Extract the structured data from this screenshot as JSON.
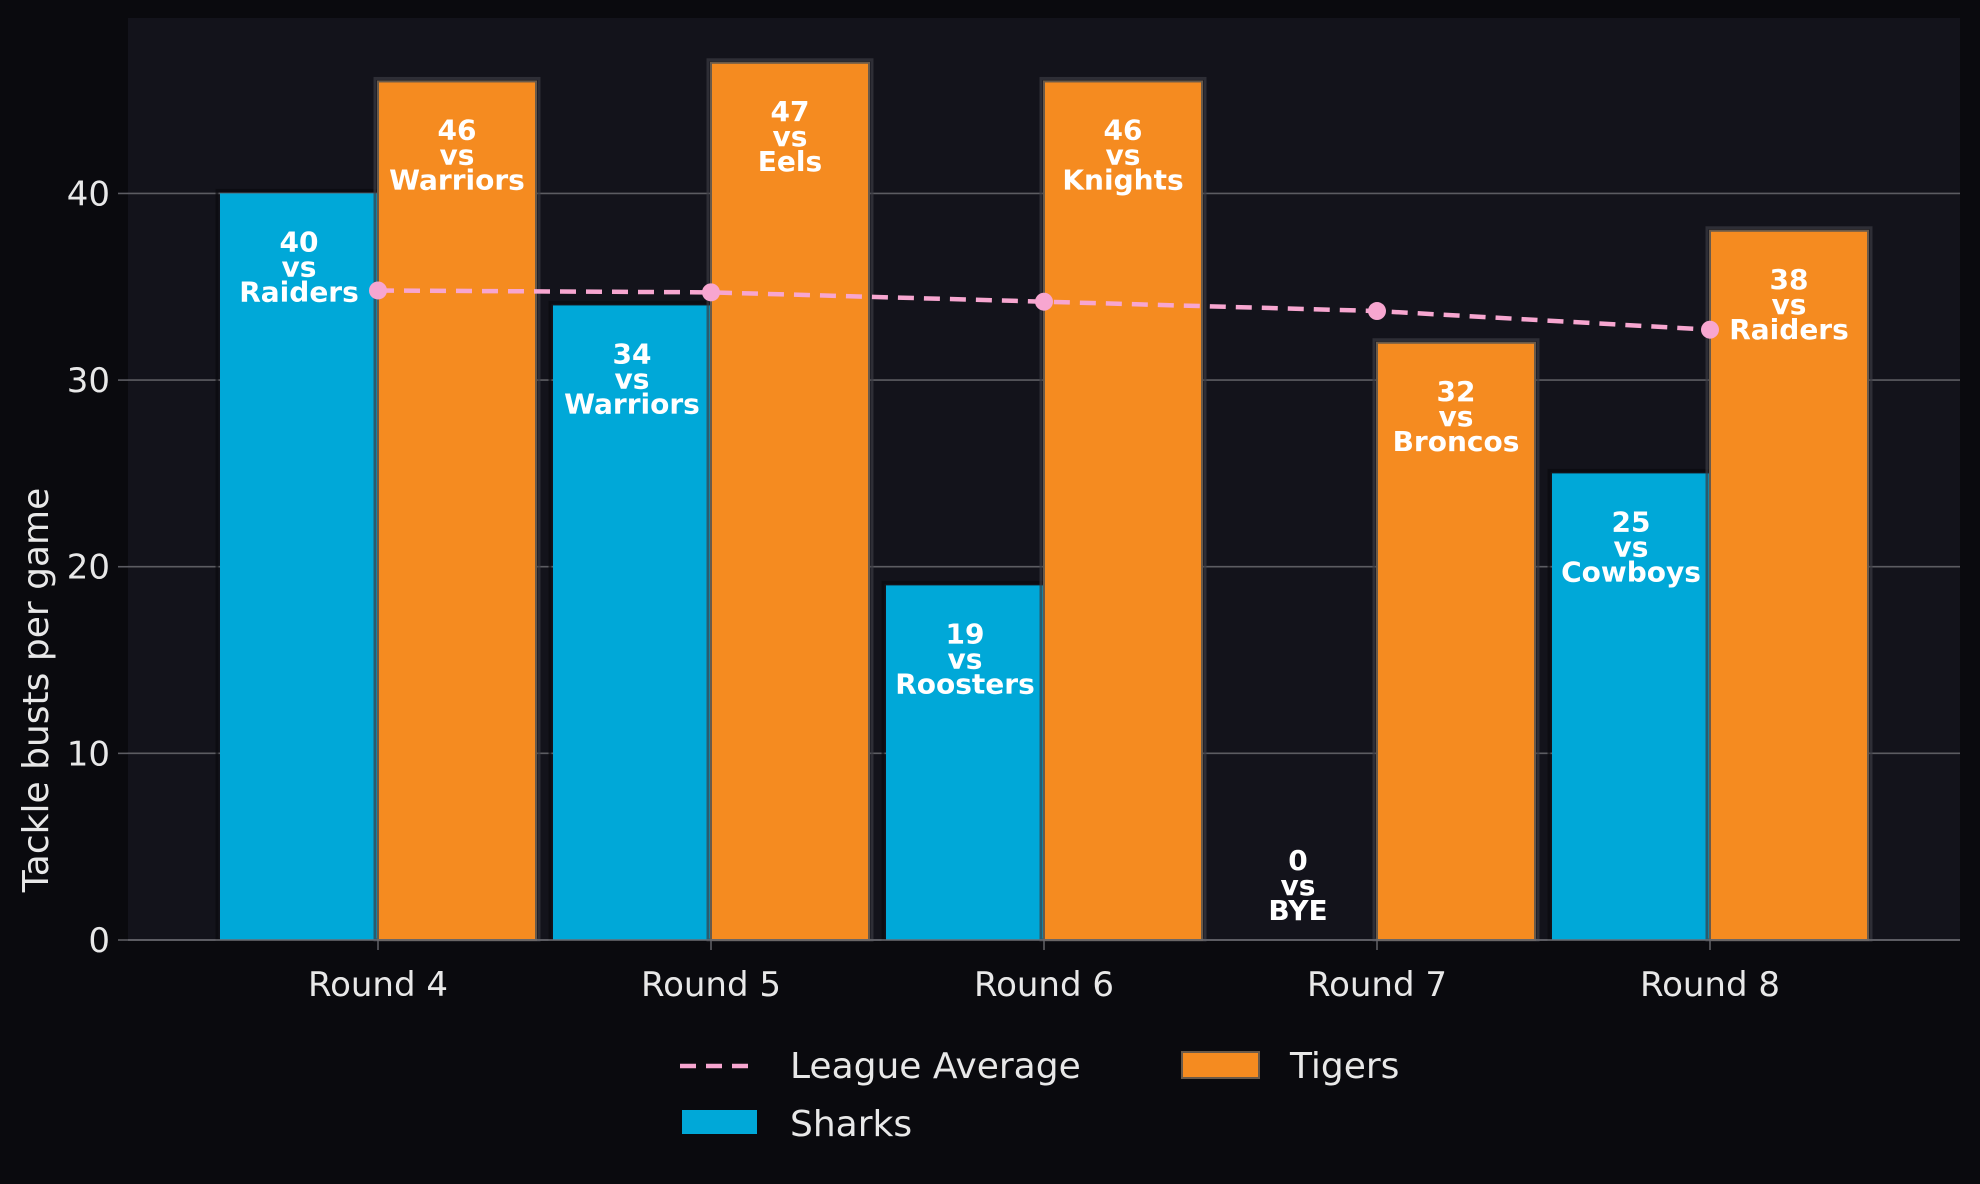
{
  "chart_data": {
    "type": "bar",
    "title": "",
    "xlabel": "",
    "ylabel": "Tackle busts per game",
    "ylim": [
      0,
      49.4
    ],
    "yticks": [
      0,
      10,
      20,
      30,
      40
    ],
    "grid": true,
    "legend_position": "bottom-center",
    "categories": [
      "Round 4",
      "Round 5",
      "Round 6",
      "Round 7",
      "Round 8"
    ],
    "series": [
      {
        "name": "Sharks",
        "type": "bar",
        "color": "#00a8d8",
        "values": [
          40,
          34,
          19,
          0,
          25
        ],
        "labels": [
          "40\nvs\nRaiders",
          "34\nvs\nWarriors",
          "19\nvs\nRoosters",
          "0\nvs\nBYE",
          "25\nvs\nCowboys"
        ]
      },
      {
        "name": "Tigers",
        "type": "bar",
        "color": "#f58b20",
        "values": [
          46,
          47,
          46,
          32,
          38
        ],
        "labels": [
          "46\nvs\nWarriors",
          "47\nvs\nEels",
          "46\nvs\nKnights",
          "32\nvs\nBroncos",
          "38\nvs\nRaiders"
        ]
      },
      {
        "name": "League Average",
        "type": "line",
        "style": "dashed",
        "color": "#f7a6d0",
        "values": [
          34.8,
          34.7,
          34.2,
          33.7,
          32.7
        ]
      }
    ],
    "legend": [
      "League Average",
      "Sharks",
      "Tigers"
    ]
  }
}
